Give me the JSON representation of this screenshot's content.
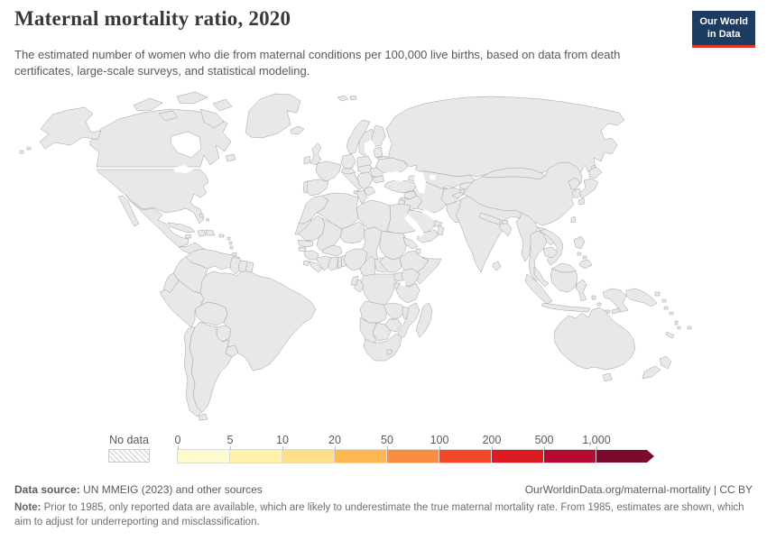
{
  "header": {
    "title": "Maternal mortality ratio, 2020",
    "subtitle": "The estimated number of women who die from maternal conditions per 100,000 live births, based on data from death certificates, large-scale surveys, and statistical modeling."
  },
  "logo": {
    "line1": "Our World",
    "line2": "in Data",
    "bg_color": "#1d3c61",
    "accent_color": "#d93a2b"
  },
  "legend": {
    "no_data_label": "No data",
    "ticks": [
      "0",
      "5",
      "10",
      "20",
      "50",
      "100",
      "200",
      "500",
      "1,000"
    ],
    "colors": [
      "#fefbce",
      "#fef3a9",
      "#fede87",
      "#fdb850",
      "#fa8d3f",
      "#f4472a",
      "#dd1c22",
      "#b50b30",
      "#7c0a2c"
    ]
  },
  "footer": {
    "data_source_label": "Data source:",
    "data_source_value": " UN MMEIG (2023) and other sources",
    "url_text": "OurWorldinData.org/maternal-mortality | CC BY",
    "note_label": "Note:",
    "note_text": " Prior to 1985, only reported data are available, which are likely to underestimate the true maternal mortality rate. From 1985, estimates are shown, which aim to adjust for underreporting and misclassification."
  },
  "map": {
    "sea_color": "#ffffff",
    "border_color": "#9e9e9e",
    "no_data_fill": "url(#hatch)",
    "regions": {
      "greenland": "url(#hatch)",
      "iceland": "#fef3a9",
      "svalbard": "#fefbce",
      "canada": "#fbd37a",
      "alaska": "#fdb054",
      "usa": "#fdb054",
      "mexico": "#fa8d3f",
      "central_america": "#fa9a45",
      "panama": "#fb9f46",
      "cuba": "#fdae4b",
      "jamaica": "#fa8d3f",
      "haiti": "#dd1c22",
      "dominican": "#f4572f",
      "bahamas": "#fbd37a",
      "puerto_rico": "#fdb054",
      "antilles": "#fa8d3f",
      "trinidad": "#fa8d3f",
      "venezuela": "#dd1c22",
      "colombia": "#fa8d3f",
      "guyana": "#f4502d",
      "suriname": "#f66b33",
      "fr_guiana": "url(#hatch)",
      "ecuador": "#fa8d3f",
      "peru": "#fa8d3f",
      "brazil": "#fa8d3f",
      "bolivia": "#f4572f",
      "paraguay": "#fa9a45",
      "uruguay": "#fede8b",
      "argentina": "#fdb850",
      "chile": "#fede8b",
      "uk": "#fef3a9",
      "ireland": "#fef3a9",
      "norway": "#fefbce",
      "sweden": "#fefbce",
      "finland": "#fefbce",
      "denmark": "#fefbce",
      "baltics": "#fef3a9",
      "belarus": "#fefbce",
      "poland": "#fefbce",
      "germany": "#fefbce",
      "france": "#fef3a9",
      "spain": "#fefbce",
      "portugal": "#fef3a9",
      "italy": "#fef3a9",
      "swiss_austria": "#fefbce",
      "czech_hu": "#fef3a9",
      "balkans": "#fef3a9",
      "greece": "#fef3a9",
      "romania": "#fef3a9",
      "bulgaria": "#fef3a9",
      "ukraine": "#fee79a",
      "turkey": "#fbefa9",
      "russia": "#fbd37a",
      "kazakhstan": "#fac96c",
      "caucasus": "#fdb850",
      "uzbekistan": "#fed77f",
      "turkmenistan": "#fa9a45",
      "kyrgyzstan": "#fa8d3f",
      "tajikistan": "#fa8d3f",
      "syria": "#fa9a45",
      "iraq": "#fa8d3f",
      "iran": "#fa9a45",
      "jordan": "#fdb850",
      "saudi": "#fede8b",
      "qatar_uae": "#fee79a",
      "yemen": "#f4572f",
      "oman": "#fede8b",
      "afghanistan": "#b50b30",
      "pakistan": "#f4502d",
      "india": "#f4572f",
      "nepal": "#f04a2c",
      "bhutan": "#fa8d3f",
      "bangladesh": "#f4572f",
      "sri_lanka": "#fda84b",
      "china": "#fdae49",
      "mongolia": "#fcc25d",
      "north_korea": "#ed402a",
      "south_korea": "#fef6b8",
      "japan": "#fefbce",
      "taiwan": "#ececec",
      "myanmar": "#f04a2c",
      "thailand": "#fda84b",
      "laos": "#f24e2d",
      "cambodia": "#d21a24",
      "vietnam": "#fca145",
      "malaysia": "#fdb24c",
      "malaysia_borneo": "#fdb24c",
      "indonesia": "#e93a28",
      "timor": "#e93a28",
      "philippines": "#f24c2c",
      "png": "#e53227",
      "morocco": "#fa8d3f",
      "w_sahara": "url(#hatch)",
      "algeria": "#fa8d3f",
      "tunisia": "#fda84b",
      "libya": "#fa8d3f",
      "egypt": "#fede8b",
      "mauritania": "#bf0a28",
      "mali": "#c30d27",
      "niger": "#c30d27",
      "chad": "#7c0a2c",
      "sudan": "#dd1c22",
      "eritrea": "#ce1423",
      "djibouti": "#e31f22",
      "ethiopia": "#dd1c22",
      "somalia": "#a30027",
      "senegal": "#dd1c22",
      "gambia": "#c30d27",
      "guinea": "#ba0528",
      "sierra_leone": "#c70f26",
      "liberia": "#a80026",
      "ivory_coast": "#c70f26",
      "ghana": "#dd1c22",
      "togo": "#d21a24",
      "benin": "#ba0528",
      "burkina": "#dd1c22",
      "nigeria": "#7c0a2c",
      "cameroon": "#c30d27",
      "car": "#ab0026",
      "south_sudan": "#750a28",
      "drc": "#b80428",
      "congo": "#dd1b22",
      "gabon": "#df2622",
      "uganda": "#dd1b22",
      "rwanda": "#d21a24",
      "kenya": "#a30027",
      "tanzania": "#d92025",
      "angola": "#e02a24",
      "zambia": "#f04a2c",
      "malawi": "#d92025",
      "mozambique": "#f4572f",
      "zimbabwe": "#dc2c25",
      "botswana": "#ef462b",
      "namibia": "#e83a27",
      "south_africa": "#f4572f",
      "lesotho": "#b80428",
      "madagascar": "#d21a24",
      "australia": "#fefbc8",
      "nz": "#fdda85",
      "fiji": "#fa8d3f",
      "vanuatu": "#fa8d3f",
      "solomon": "#ed402a",
      "new_caledonia": "#dcdcdc"
    }
  }
}
